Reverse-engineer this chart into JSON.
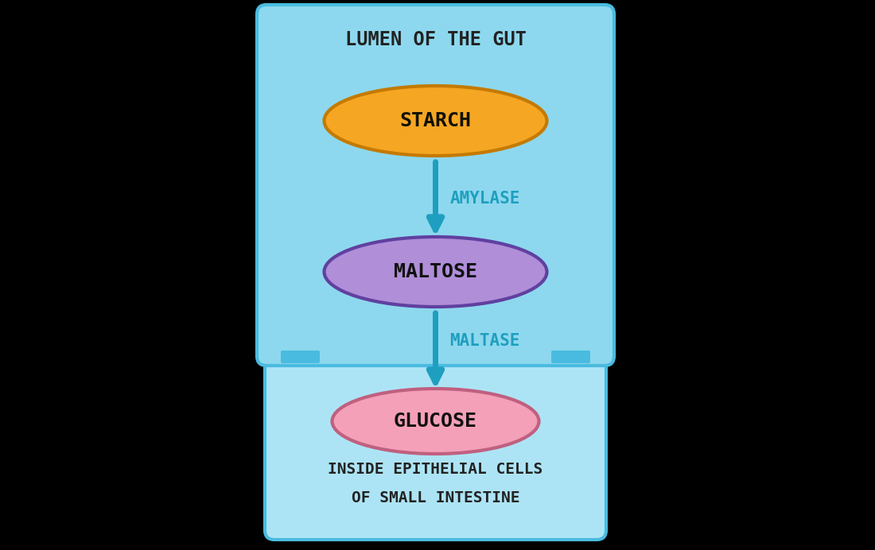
{
  "bg_color": "#000000",
  "box1_color": "#8DD8EE",
  "box1_border_color": "#4ABBE0",
  "box2_color": "#ADE4F5",
  "box2_border_color": "#4ABBE0",
  "starch_ellipse_color": "#F5A623",
  "starch_ellipse_border": "#C47A00",
  "starch_text": "STARCH",
  "starch_text_color": "#111100",
  "maltose_ellipse_color": "#B08ED8",
  "maltose_ellipse_border": "#6040A0",
  "maltose_text": "MALTOSE",
  "maltose_text_color": "#111111",
  "glucose_ellipse_color": "#F4A0B8",
  "glucose_ellipse_border": "#C06080",
  "glucose_text": "GLUCOSE",
  "glucose_text_color": "#111111",
  "arrow_color": "#1E9FBF",
  "amylase_text": "AMYLASE",
  "amylase_text_color": "#1E9FBF",
  "maltase_text": "MALTASE",
  "maltase_text_color": "#1E9FBF",
  "lumen_label": "LUMEN OF THE GUT",
  "lumen_label_color": "#222222",
  "epithelial_label_line1": "INSIDE EPITHELIAL CELLS",
  "epithelial_label_line2": "OF SMALL INTESTINE",
  "epithelial_label_color": "#222222",
  "tab_color": "#4ABBE0",
  "figsize": [
    11.0,
    6.92
  ],
  "dpi": 100
}
